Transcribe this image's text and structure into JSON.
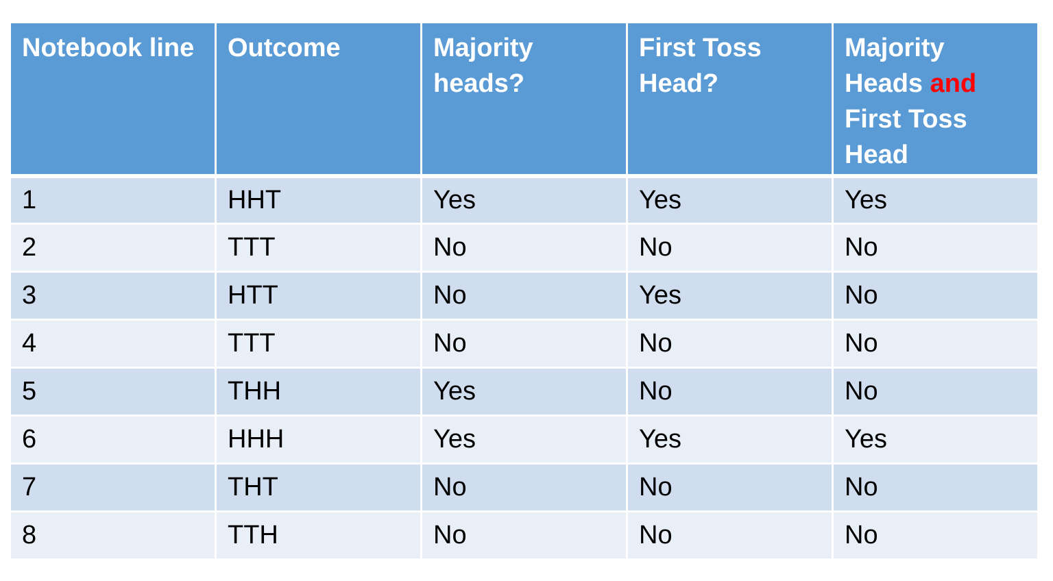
{
  "table": {
    "headers": [
      {
        "text": "Notebook line"
      },
      {
        "text": "Outcome"
      },
      {
        "text": "Majority heads?"
      },
      {
        "text": "First Toss Head?"
      },
      {
        "pre": "Majority Heads ",
        "accent": "and",
        "post": " First Toss Head"
      }
    ],
    "rows": [
      [
        "1",
        "HHT",
        "Yes",
        "Yes",
        "Yes"
      ],
      [
        "2",
        "TTT",
        "No",
        "No",
        "No"
      ],
      [
        "3",
        "HTT",
        "No",
        "Yes",
        "No"
      ],
      [
        "4",
        "TTT",
        "No",
        "No",
        "No"
      ],
      [
        "5",
        "THH",
        "Yes",
        "No",
        "No"
      ],
      [
        "6",
        "HHH",
        "Yes",
        "Yes",
        "Yes"
      ],
      [
        "7",
        "THT",
        "No",
        "No",
        "No"
      ],
      [
        "8",
        "TTH",
        "No",
        "No",
        "No"
      ]
    ]
  },
  "colors": {
    "header_bg": "#5b9bd5",
    "row_odd_bg": "#d0ddef",
    "row_even_bg": "#e9eff7",
    "accent_text": "#ff0000"
  }
}
